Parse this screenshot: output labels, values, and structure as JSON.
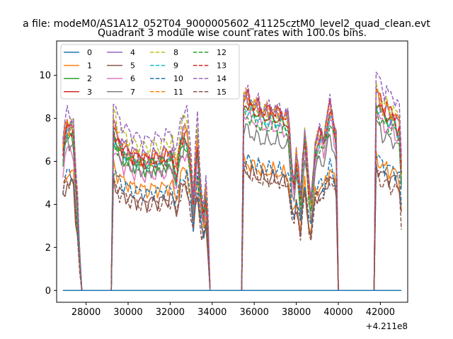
{
  "figure": {
    "suptitle": "a file: modeM0/AS1A12_052T04_9000005602_41125cztM0_level2_quad_clean.evt",
    "title": "Quadrant 3 module wise count rates with 100.0s bins.",
    "offset_label": "+4.211e8"
  },
  "chart_data": {
    "type": "line",
    "title": "Quadrant 3 module wise count rates with 100.0s bins.",
    "xlabel": "",
    "ylabel": "",
    "x_offset": 421100000,
    "xlim": [
      26600,
      43300
    ],
    "ylim": [
      -0.55,
      11.6
    ],
    "xticks": [
      28000,
      30000,
      32000,
      34000,
      36000,
      38000,
      40000,
      42000
    ],
    "yticks": [
      0,
      2,
      4,
      6,
      8,
      10
    ],
    "grid": false,
    "legend": {
      "position": "top-left",
      "columns": 4
    },
    "bin_width": 100,
    "x_start": 26900,
    "x_end": 43000,
    "gaps": [
      [
        27800,
        29200
      ],
      [
        33900,
        35400
      ],
      [
        40000,
        41700
      ]
    ],
    "segments": [
      {
        "start": 26900,
        "end": 27700,
        "levels": [
          0,
          5.5,
          7.2,
          7.6,
          7.9,
          5.0,
          6.6,
          7.0,
          8.0,
          7.5,
          5.5,
          7.8,
          7.3,
          7.7,
          8.3,
          5.2
        ],
        "shape": [
          0.85,
          0.95,
          1.0,
          0.97,
          0.99,
          0.96,
          0.7,
          0.5,
          0.2
        ]
      },
      {
        "start": 29300,
        "end": 33800,
        "levels": [
          0,
          5.6,
          6.8,
          7.3,
          7.5,
          4.9,
          6.4,
          6.7,
          8.0,
          7.1,
          5.4,
          7.4,
          7.0,
          7.2,
          8.4,
          4.8
        ],
        "shape": [
          1.05,
          1.0,
          0.96,
          0.94,
          0.92,
          0.9,
          0.9,
          0.88,
          0.87,
          0.86,
          0.86,
          0.85,
          0.85,
          0.84,
          0.84,
          0.84,
          0.83,
          0.83,
          0.84,
          0.85,
          0.85,
          0.84,
          0.84,
          0.85,
          0.86,
          0.86,
          0.86,
          0.87,
          0.87,
          0.8,
          0.75,
          0.86,
          0.95,
          0.98,
          1.0,
          0.98,
          0.88,
          0.75,
          0.55,
          0.8,
          0.95,
          0.7,
          0.55,
          0.5,
          0.62,
          0.4
        ]
      },
      {
        "start": 35500,
        "end": 39900,
        "levels": [
          0,
          6.0,
          8.7,
          9.0,
          8.9,
          5.6,
          8.2,
          7.5,
          8.8,
          8.5,
          6.1,
          9.0,
          8.2,
          8.7,
          9.2,
          5.5
        ],
        "shape": [
          1.0,
          1.0,
          0.99,
          0.97,
          0.97,
          0.96,
          0.95,
          0.95,
          0.93,
          0.93,
          0.93,
          0.93,
          0.92,
          0.93,
          0.93,
          0.92,
          0.92,
          0.91,
          0.91,
          0.9,
          0.9,
          0.89,
          0.78,
          0.62,
          0.57,
          0.7,
          0.6,
          0.47,
          0.68,
          0.82,
          0.71,
          0.52,
          0.46,
          0.6,
          0.75,
          0.78,
          0.8,
          0.82,
          0.78,
          0.85,
          0.9,
          0.95,
          0.92,
          0.86,
          0.8
        ]
      },
      {
        "start": 41800,
        "end": 43000,
        "levels": [
          0,
          6.2,
          8.8,
          9.3,
          9.1,
          5.8,
          8.3,
          7.8,
          9.4,
          8.7,
          6.3,
          9.2,
          8.4,
          8.9,
          10.1,
          5.4
        ],
        "shape": [
          1.0,
          0.98,
          0.95,
          0.93,
          0.91,
          0.93,
          0.9,
          0.89,
          0.9,
          0.88,
          0.86,
          0.85,
          0.6
        ]
      }
    ],
    "series": [
      {
        "name": "0",
        "color": "#1f77b4",
        "dash": "solid"
      },
      {
        "name": "1",
        "color": "#ff7f0e",
        "dash": "solid"
      },
      {
        "name": "2",
        "color": "#2ca02c",
        "dash": "solid"
      },
      {
        "name": "3",
        "color": "#d62728",
        "dash": "solid"
      },
      {
        "name": "4",
        "color": "#9467bd",
        "dash": "solid"
      },
      {
        "name": "5",
        "color": "#8c564b",
        "dash": "solid"
      },
      {
        "name": "6",
        "color": "#e377c2",
        "dash": "solid"
      },
      {
        "name": "7",
        "color": "#7f7f7f",
        "dash": "solid"
      },
      {
        "name": "8",
        "color": "#bcbd22",
        "dash": "dashed"
      },
      {
        "name": "9",
        "color": "#17becf",
        "dash": "dashed"
      },
      {
        "name": "10",
        "color": "#1f77b4",
        "dash": "dashed"
      },
      {
        "name": "11",
        "color": "#ff7f0e",
        "dash": "dashed"
      },
      {
        "name": "12",
        "color": "#2ca02c",
        "dash": "dashed"
      },
      {
        "name": "13",
        "color": "#d62728",
        "dash": "dashed"
      },
      {
        "name": "14",
        "color": "#9467bd",
        "dash": "dashed"
      },
      {
        "name": "15",
        "color": "#8c564b",
        "dash": "dashed"
      }
    ]
  }
}
